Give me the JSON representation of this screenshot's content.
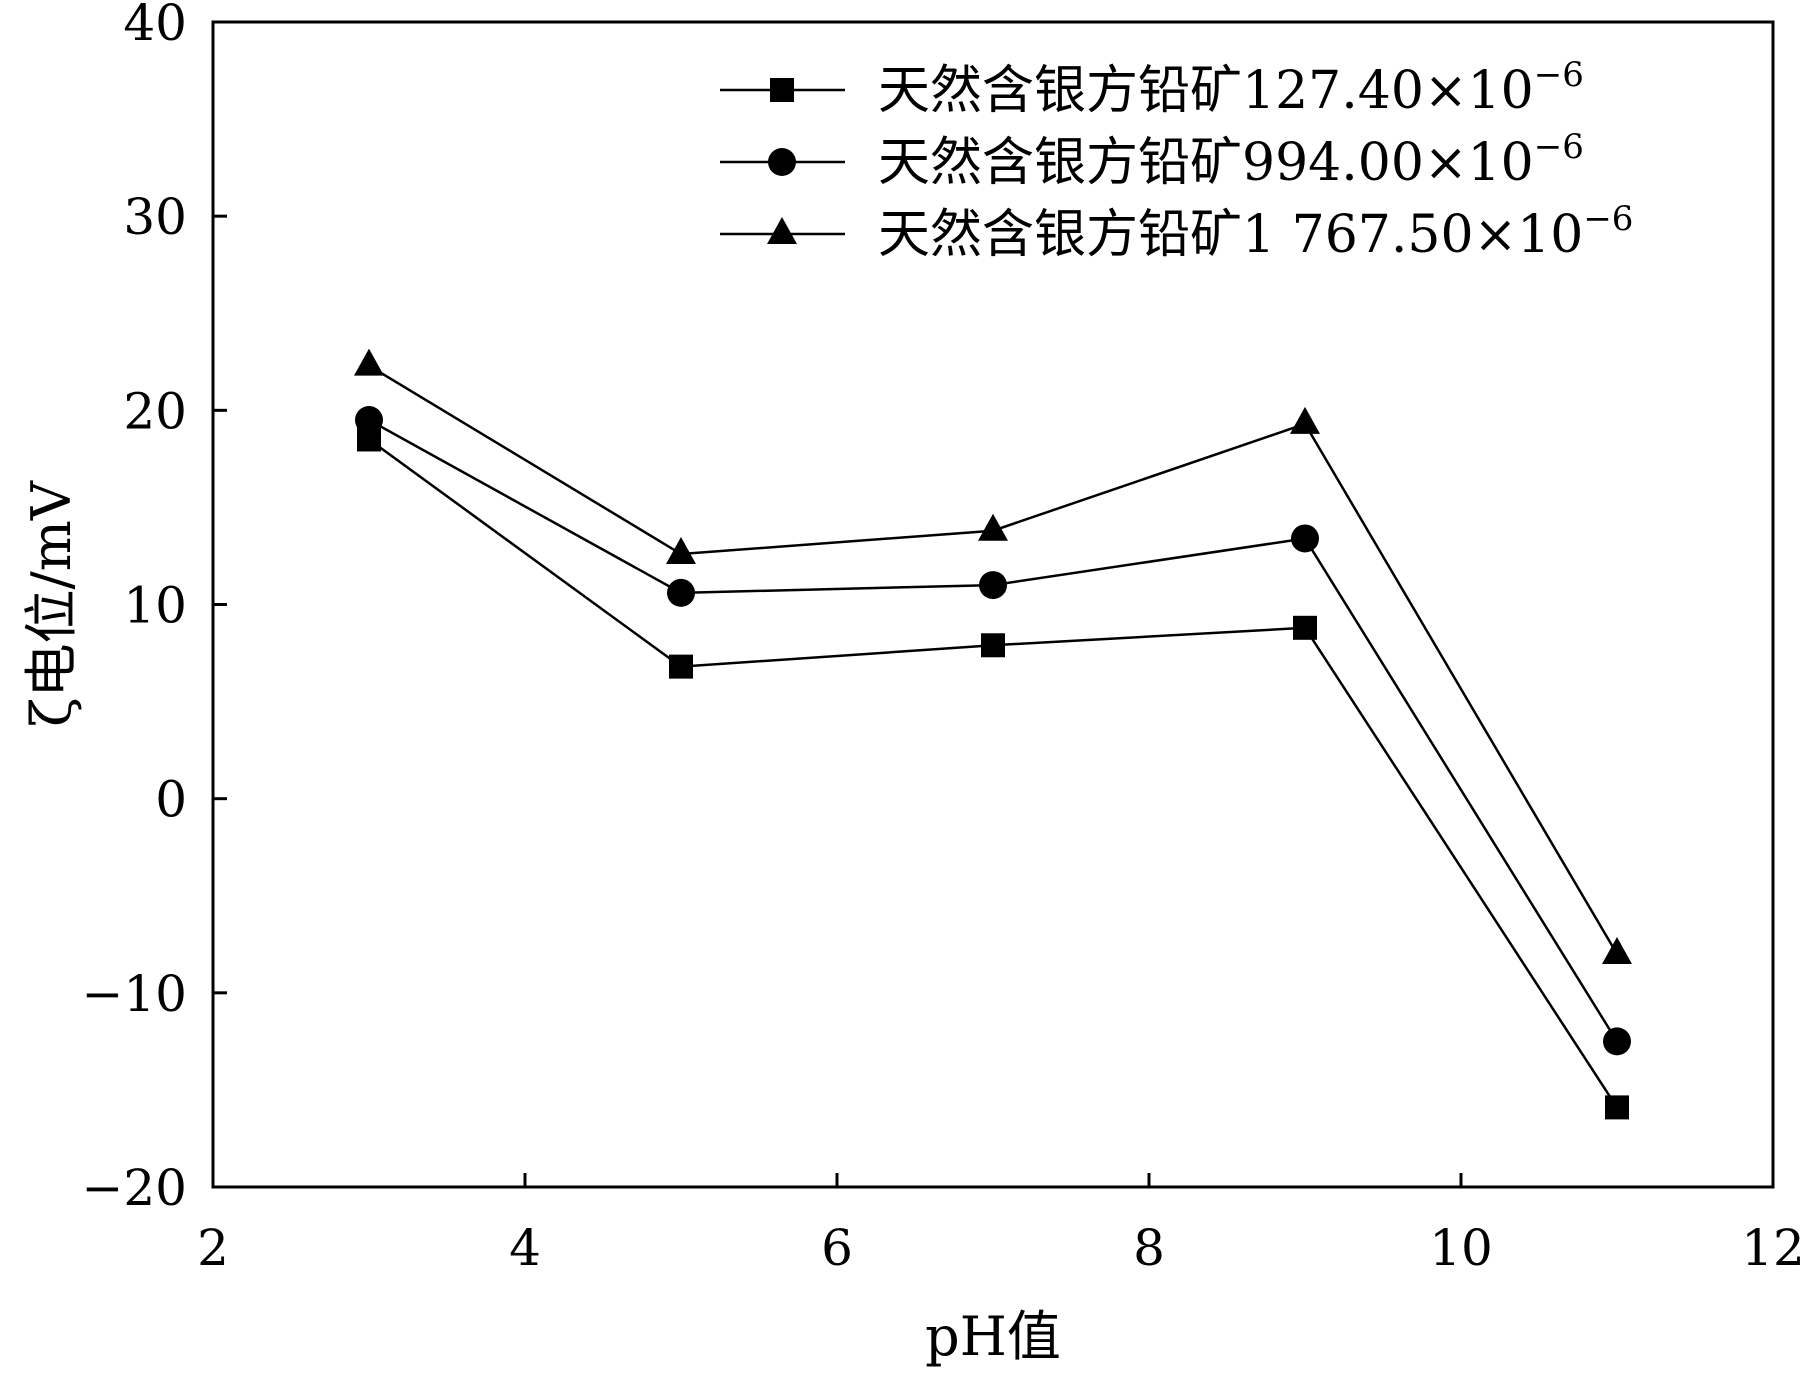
{
  "chart_data": {
    "type": "line",
    "xlabel": "pH值",
    "ylabel": "ζ电位/mV",
    "xlim": [
      2,
      12
    ],
    "ylim": [
      -20,
      40
    ],
    "x_ticks": [
      2,
      4,
      6,
      8,
      10,
      12
    ],
    "y_ticks": [
      -20,
      -10,
      0,
      10,
      20,
      30,
      40
    ],
    "x_tick_labels": [
      "2",
      "4",
      "6",
      "8",
      "10",
      "12"
    ],
    "y_tick_labels": [
      "−20",
      "−10",
      "0",
      "10",
      "20",
      "30",
      "40"
    ],
    "grid": false,
    "legend_position": "top-right",
    "x": [
      3,
      5,
      7,
      9,
      11
    ],
    "series": [
      {
        "name": "天然含银方铅矿127.40×10⁻⁶",
        "label_main": "天然含银方铅矿127.40×10",
        "label_sup": "−6",
        "marker": "square",
        "values": [
          18.5,
          6.8,
          7.9,
          8.8,
          -15.9
        ]
      },
      {
        "name": "天然含银方铅矿994.00×10⁻⁶",
        "label_main": "天然含银方铅矿994.00×10",
        "label_sup": "−6",
        "marker": "circle",
        "values": [
          19.5,
          10.6,
          11.0,
          13.4,
          -12.5
        ]
      },
      {
        "name": "天然含银方铅矿1 767.50×10⁻⁶",
        "label_main": "天然含银方铅矿1 767.50×10",
        "label_sup": "−6",
        "marker": "triangle",
        "values": [
          22.3,
          12.6,
          13.8,
          19.3,
          -8.0
        ]
      }
    ]
  }
}
